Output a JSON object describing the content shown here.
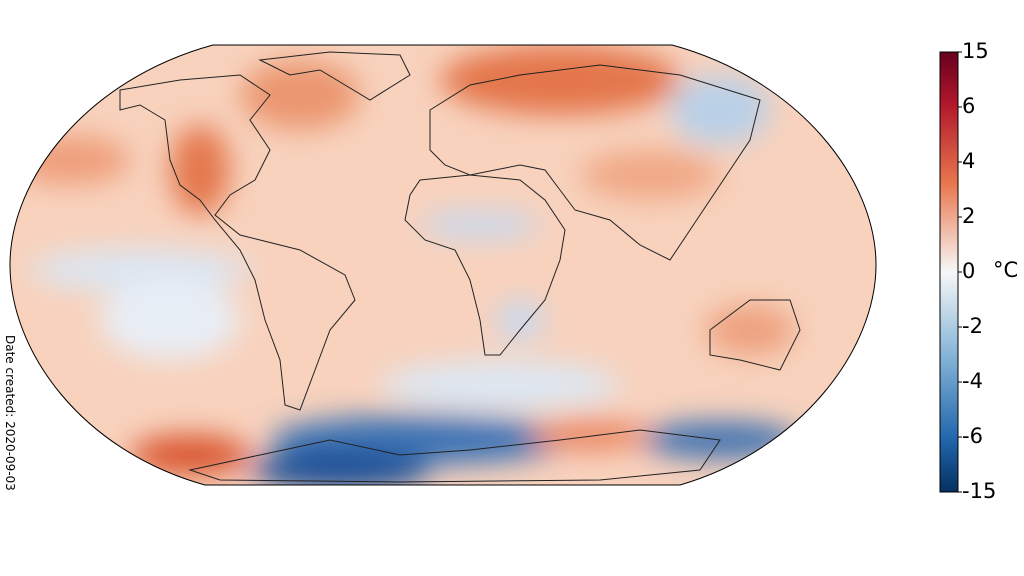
{
  "colorbar": {
    "ticks": [
      15,
      6,
      4,
      2,
      0,
      -2,
      -4,
      -6,
      -15
    ],
    "unit": "°C"
  },
  "footer": {
    "date_created": "Date created: 2020-09-03"
  }
}
